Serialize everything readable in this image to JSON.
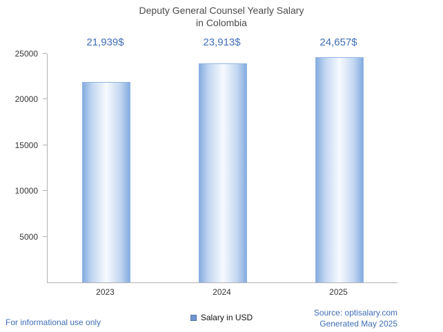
{
  "chart_data": {
    "type": "bar",
    "title": "Deputy General Counsel Yearly Salary in Colombia",
    "title_lines": [
      "Deputy General Counsel Yearly Salary",
      "in Colombia"
    ],
    "categories": [
      "2023",
      "2024",
      "2025"
    ],
    "values": [
      21939,
      23913,
      24657
    ],
    "value_labels": [
      "21,939$",
      "23,913$",
      "24,657$"
    ],
    "series_name": "Salary in USD",
    "ylim": [
      0,
      25000
    ],
    "yticks": [
      5000,
      10000,
      15000,
      20000,
      25000
    ],
    "grid": false,
    "legend_position": "bottom-center"
  },
  "legend": {
    "label": "Salary in USD"
  },
  "footer": {
    "disclaimer": "For informational use only",
    "source": "Source: optisalary.com",
    "generated": "Generated May 2025"
  },
  "colors": {
    "accent_text": "#3e6db5",
    "bar_edge": "#85acdf",
    "bar_mid": "#c3d7f1",
    "bar_center": "#f7faff",
    "legend_swatch": "#6f96d1",
    "title_text": "#4a4a4a",
    "axis_line": "#b0b0b0"
  }
}
